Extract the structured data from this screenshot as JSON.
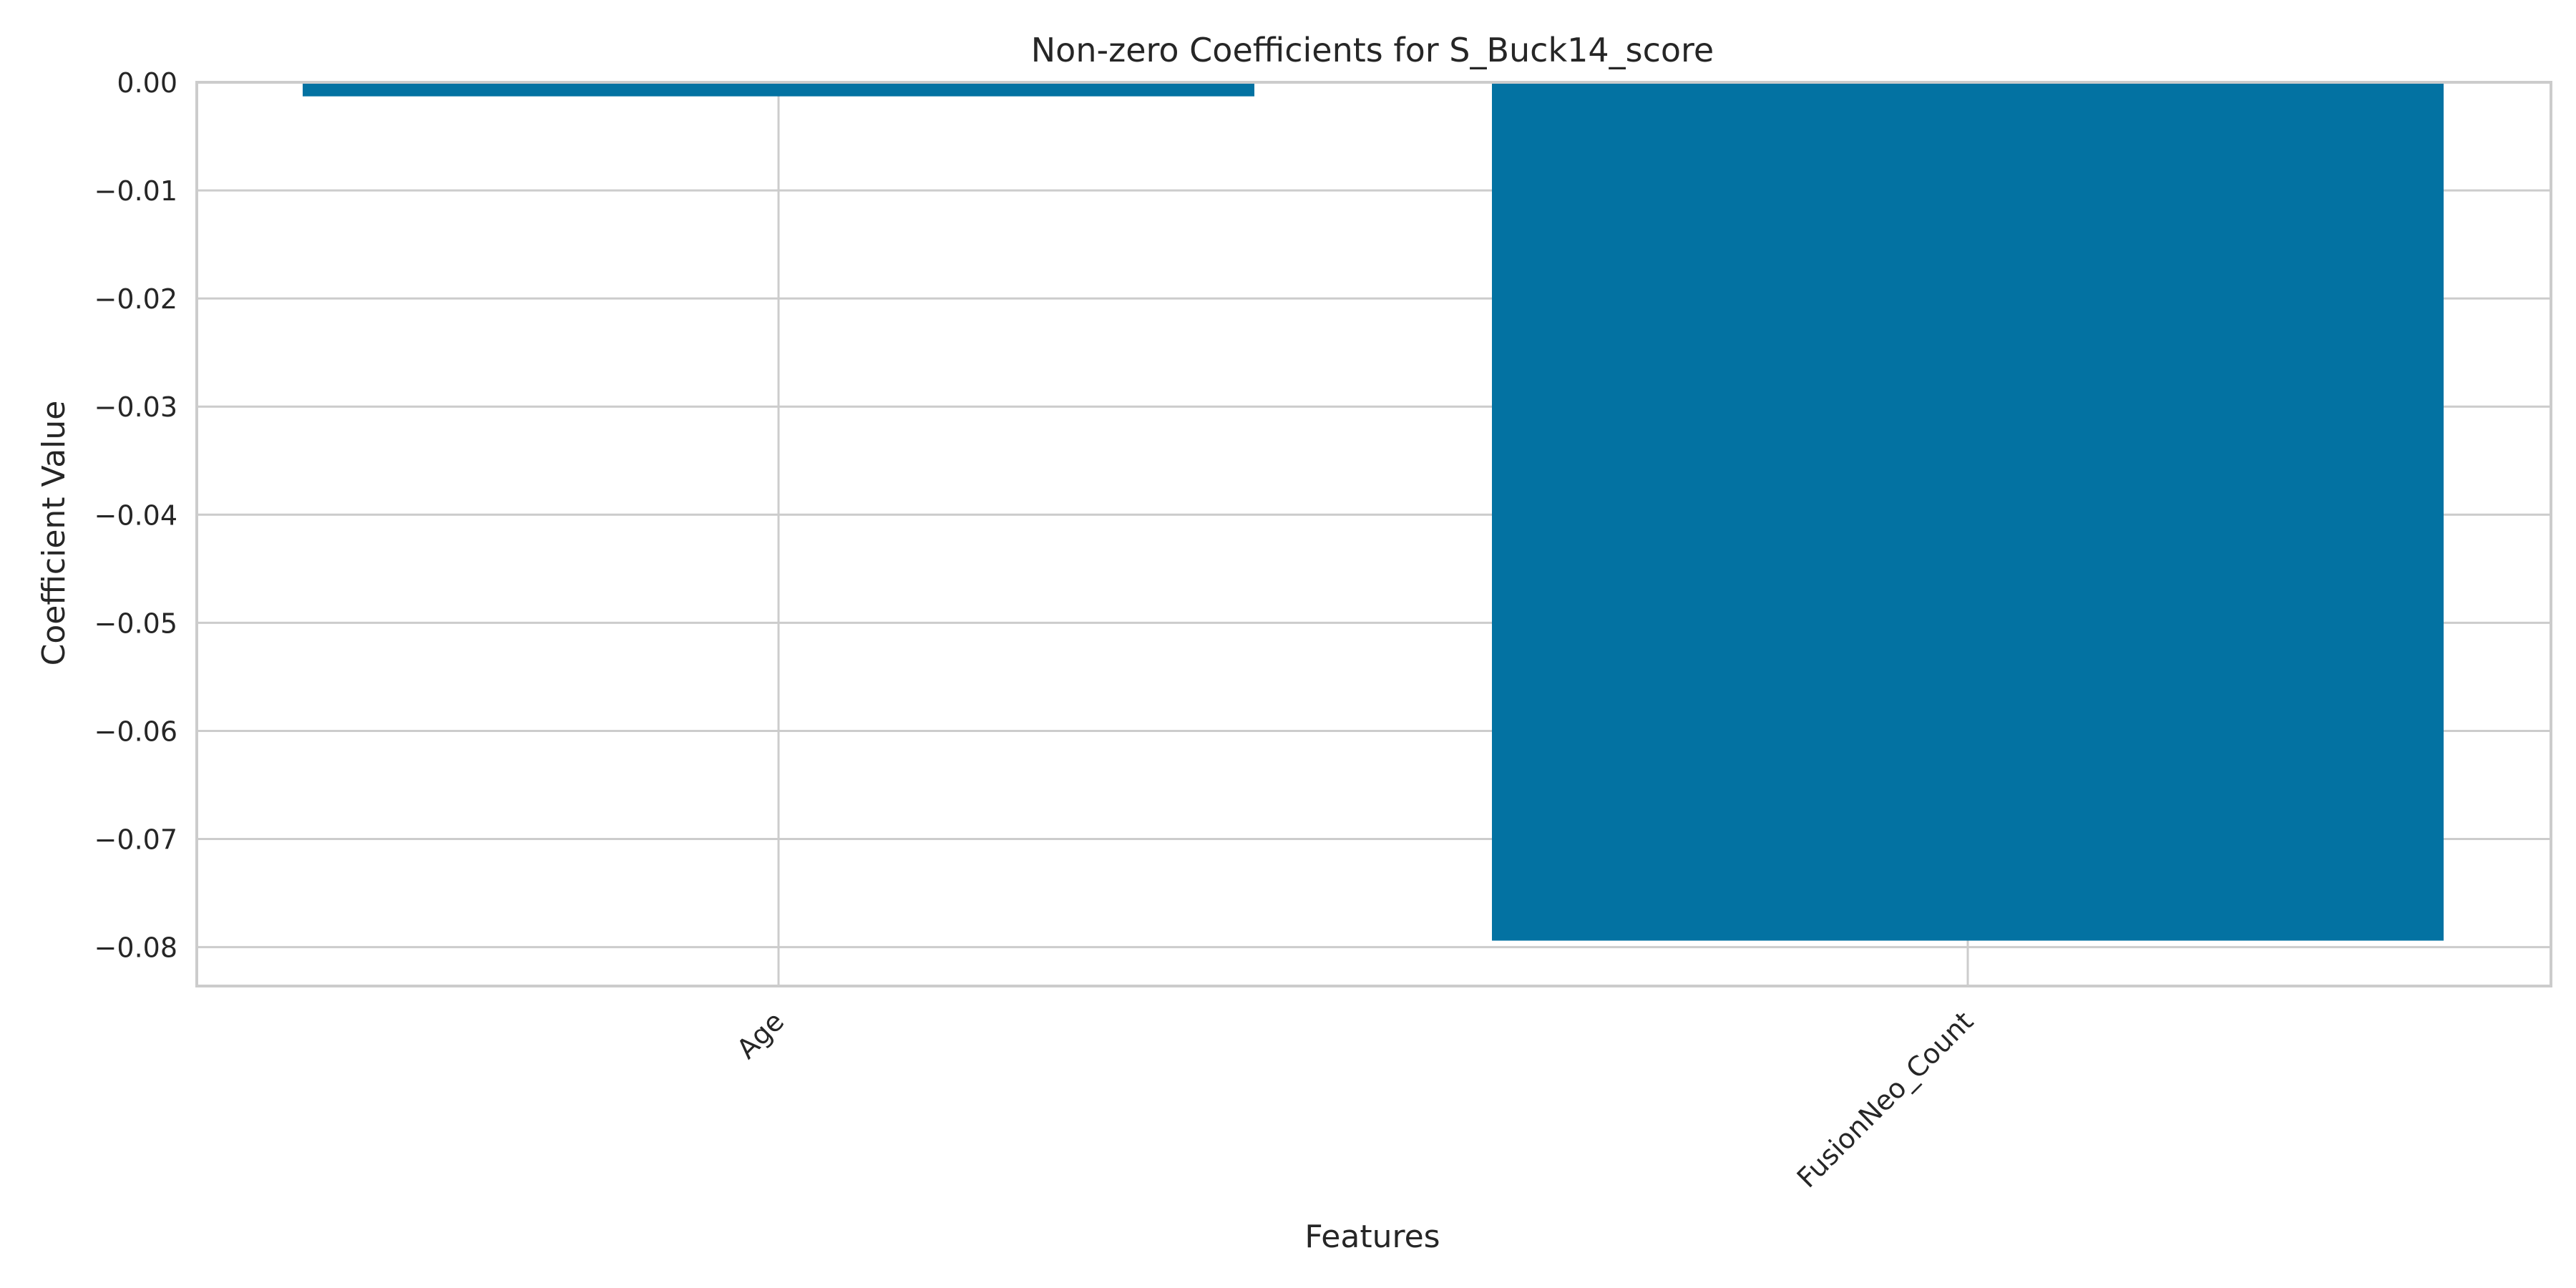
{
  "chart_data": {
    "type": "bar",
    "title": "Non-zero Coefficients for S_Buck14_score",
    "xlabel": "Features",
    "ylabel": "Coefficient Value",
    "categories": [
      "Age",
      "FusionNeo_Count"
    ],
    "values": [
      -0.0013,
      -0.0794
    ],
    "ylim": [
      -0.0836,
      0.0
    ],
    "yticks": [
      0.0,
      -0.01,
      -0.02,
      -0.03,
      -0.04,
      -0.05,
      -0.06,
      -0.07,
      -0.08
    ],
    "ytick_labels": [
      "0.00",
      "−0.01",
      "−0.02",
      "−0.03",
      "−0.04",
      "−0.05",
      "−0.06",
      "−0.07",
      "−0.08"
    ],
    "grid": true,
    "legend": "none"
  },
  "colors": {
    "bar": "#0372a2",
    "grid": "#cccccc",
    "spine": "#cccccc",
    "text": "#262626",
    "background": "#ffffff"
  }
}
